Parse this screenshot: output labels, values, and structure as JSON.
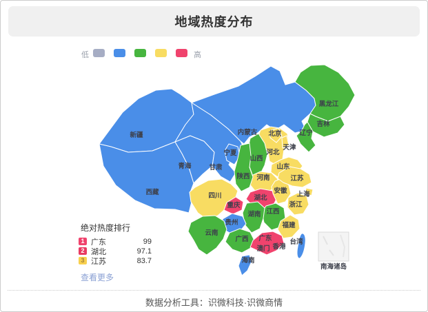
{
  "header": {
    "title": "地域热度分布"
  },
  "footer": {
    "text": "数据分析工具：识微科技·识微商情"
  },
  "chart_data": {
    "type": "heatmap",
    "title": "地域热度分布",
    "legend": {
      "low_label": "低",
      "high_label": "高",
      "scale_colors": [
        "#a6adc4",
        "#4a8ee8",
        "#47b53f",
        "#f8dc62",
        "#f0436d"
      ]
    },
    "palette": {
      "blue": "#4a8ee8",
      "green": "#47b53f",
      "yellow": "#f8dc62",
      "red": "#f0436d"
    },
    "regions": [
      {
        "name": "新疆",
        "tier": "blue"
      },
      {
        "name": "西藏",
        "tier": "blue"
      },
      {
        "name": "青海",
        "tier": "blue"
      },
      {
        "name": "甘肃",
        "tier": "blue"
      },
      {
        "name": "内蒙古",
        "tier": "blue"
      },
      {
        "name": "宁夏",
        "tier": "blue"
      },
      {
        "name": "黑龙江",
        "tier": "green"
      },
      {
        "name": "吉林",
        "tier": "green"
      },
      {
        "name": "辽宁",
        "tier": "green"
      },
      {
        "name": "河北",
        "tier": "yellow"
      },
      {
        "name": "北京",
        "tier": "yellow"
      },
      {
        "name": "天津",
        "tier": "yellow"
      },
      {
        "name": "山西",
        "tier": "green"
      },
      {
        "name": "山东",
        "tier": "yellow"
      },
      {
        "name": "河南",
        "tier": "yellow"
      },
      {
        "name": "陕西",
        "tier": "green"
      },
      {
        "name": "四川",
        "tier": "yellow"
      },
      {
        "name": "重庆",
        "tier": "red"
      },
      {
        "name": "湖北",
        "tier": "red",
        "value": 97.1
      },
      {
        "name": "安徽",
        "tier": "yellow"
      },
      {
        "name": "江苏",
        "tier": "yellow",
        "value": 83.7
      },
      {
        "name": "上海",
        "tier": "yellow"
      },
      {
        "name": "浙江",
        "tier": "yellow"
      },
      {
        "name": "江西",
        "tier": "green"
      },
      {
        "name": "湖南",
        "tier": "green"
      },
      {
        "name": "贵州",
        "tier": "blue"
      },
      {
        "name": "福建",
        "tier": "yellow"
      },
      {
        "name": "云南",
        "tier": "green"
      },
      {
        "name": "广西",
        "tier": "green"
      },
      {
        "name": "广东",
        "tier": "red",
        "value": 99
      },
      {
        "name": "海南",
        "tier": "blue"
      },
      {
        "name": "台湾",
        "tier": "blue"
      }
    ],
    "label_only_regions": [
      "香港",
      "澳门"
    ],
    "inset_label": "南海诸岛",
    "ranking": {
      "title": "绝对热度排行",
      "rows": [
        {
          "rank": "1",
          "name": "广东",
          "value": "99",
          "badge": "#f0436d",
          "badge_text": "#ffffff"
        },
        {
          "rank": "2",
          "name": "湖北",
          "value": "97.1",
          "badge": "#e93a63",
          "badge_text": "#ffffff"
        },
        {
          "rank": "3",
          "name": "江苏",
          "value": "83.7",
          "badge": "#f8d04e",
          "badge_text": "#a3813a"
        }
      ],
      "more_label": "查看更多"
    }
  }
}
